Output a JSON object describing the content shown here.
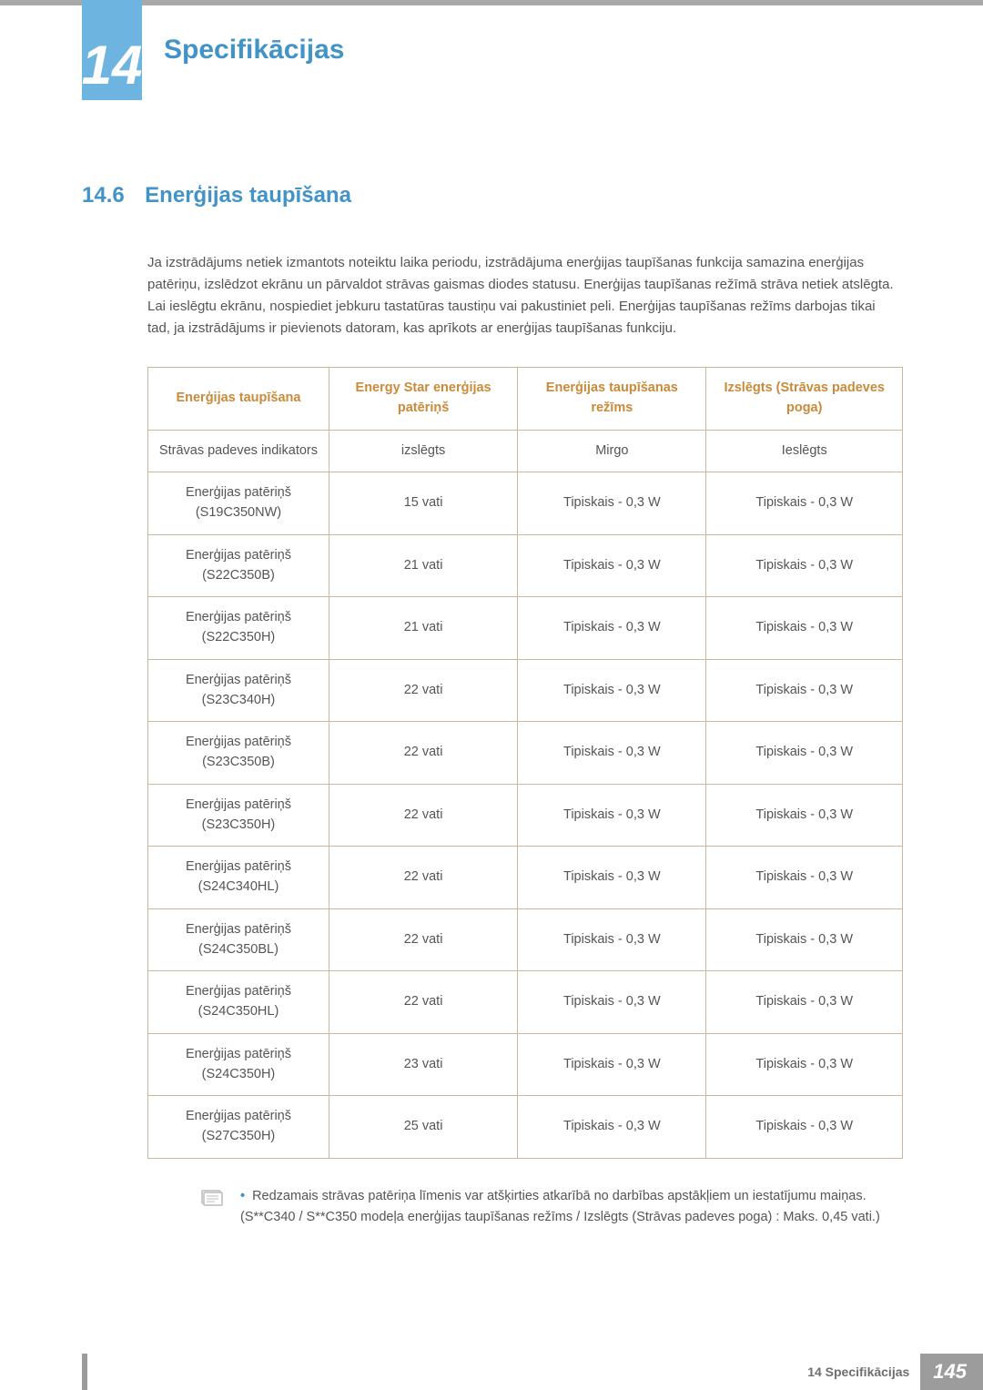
{
  "chapter": {
    "number": "14",
    "title": "Specifikācijas"
  },
  "section": {
    "number": "14.6",
    "title": "Enerģijas taupīšana"
  },
  "intro_text": "Ja izstrādājums netiek izmantots noteiktu laika periodu, izstrādājuma enerģijas taupīšanas funkcija samazina enerģijas patēriņu, izslēdzot ekrānu un pārvaldot strāvas gaismas diodes statusu. Enerģijas taupīšanas režīmā strāva netiek atslēgta. Lai ieslēgtu ekrānu, nospiediet jebkuru tastatūras taustiņu vai pakustiniet peli. Enerģijas taupīšanas režīms darbojas tikai tad, ja izstrādājums ir pievienots datoram, kas aprīkots ar enerģijas taupīšanas funkciju.",
  "table": {
    "headers": [
      "Enerģijas taupīšana",
      "Energy Star enerģijas patēriņš",
      "Enerģijas taupīšanas režīms",
      "Izslēgts (Strāvas padeves poga)"
    ],
    "rows": [
      [
        "Strāvas padeves indikators",
        "izslēgts",
        "Mirgo",
        "Ieslēgts"
      ],
      [
        "Enerģijas patēriņš (S19C350NW)",
        "15 vati",
        "Tipiskais - 0,3 W",
        "Tipiskais - 0,3 W"
      ],
      [
        "Enerģijas patēriņš (S22C350B)",
        "21 vati",
        "Tipiskais - 0,3 W",
        "Tipiskais - 0,3 W"
      ],
      [
        "Enerģijas patēriņš (S22C350H)",
        "21 vati",
        "Tipiskais - 0,3 W",
        "Tipiskais - 0,3 W"
      ],
      [
        "Enerģijas patēriņš (S23C340H)",
        "22 vati",
        "Tipiskais - 0,3 W",
        "Tipiskais - 0,3 W"
      ],
      [
        "Enerģijas patēriņš (S23C350B)",
        "22 vati",
        "Tipiskais - 0,3 W",
        "Tipiskais - 0,3 W"
      ],
      [
        "Enerģijas patēriņš (S23C350H)",
        "22 vati",
        "Tipiskais - 0,3 W",
        "Tipiskais - 0,3 W"
      ],
      [
        "Enerģijas patēriņš (S24C340HL)",
        "22 vati",
        "Tipiskais - 0,3 W",
        "Tipiskais - 0,3 W"
      ],
      [
        "Enerģijas patēriņš (S24C350BL)",
        "22 vati",
        "Tipiskais - 0,3 W",
        "Tipiskais - 0,3 W"
      ],
      [
        "Enerģijas patēriņš (S24C350HL)",
        "22 vati",
        "Tipiskais - 0,3 W",
        "Tipiskais - 0,3 W"
      ],
      [
        "Enerģijas patēriņš (S24C350H)",
        "23 vati",
        "Tipiskais - 0,3 W",
        "Tipiskais - 0,3 W"
      ],
      [
        "Enerģijas patēriņš (S27C350H)",
        "25 vati",
        "Tipiskais - 0,3 W",
        "Tipiskais - 0,3 W"
      ]
    ],
    "col_widths": [
      "24%",
      "25%",
      "25%",
      "26%"
    ],
    "border_color": "#c9b9a3",
    "header_color": "#c98a3a",
    "text_color": "#555555"
  },
  "note_text": "Redzamais strāvas patēriņa līmenis var atšķirties atkarībā no darbības apstākļiem un iestatījumu maiņas. (S**C340 / S**C350 modeļa enerģijas taupīšanas režīms / Izslēgts (Strāvas padeves poga) : Maks. 0,45 vati.)",
  "footer": {
    "label": "14 Specifikācijas",
    "page": "145"
  },
  "colors": {
    "accent_blue": "#4193c8",
    "badge_blue": "#6db4e0",
    "top_bar": "#a8a8a8",
    "footer_gray": "#9c9c9c"
  }
}
